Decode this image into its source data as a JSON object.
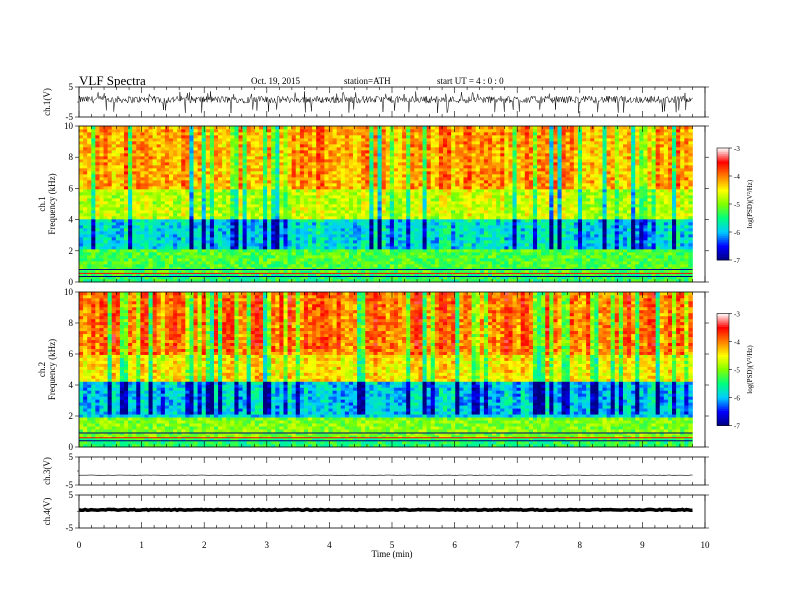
{
  "header": {
    "title": "VLF  Spectra",
    "date": "Oct. 19, 2015",
    "station": "station=ATH",
    "start": "start  UT  =   4  : 0  : 0"
  },
  "time_axis": {
    "label": "Time  (min)",
    "range": [
      0,
      10
    ],
    "ticks": [
      0,
      1,
      2,
      3,
      4,
      5,
      6,
      7,
      8,
      9,
      10
    ],
    "data_end": 9.8
  },
  "colorbar": {
    "label": "log(PSD)(V²/Hz)",
    "range": [
      -7,
      -3
    ],
    "ticks": [
      -3,
      -4,
      -5,
      -6,
      -7
    ],
    "stops": [
      "#000080",
      "#0000ff",
      "#00ccff",
      "#00ff80",
      "#80ff00",
      "#ffff00",
      "#ff8000",
      "#ff0000",
      "#ffffff"
    ]
  },
  "chart_data": [
    {
      "type": "line",
      "panel": "ch1",
      "ylabel": "ch.1(V)",
      "ylim": [
        -5,
        5
      ],
      "yticks": [
        5,
        -5
      ],
      "x_range_min": [
        0,
        9.8
      ],
      "baseline_v": 0.8,
      "noise_amplitude_v": 1.2,
      "spike_min_v": -2.5
    },
    {
      "type": "heatmap",
      "panel": "ch1",
      "ylabel_lines": [
        "ch.1",
        "Frequency  (kHz)"
      ],
      "ylim": [
        0,
        10
      ],
      "yticks": [
        0,
        2,
        4,
        6,
        8,
        10
      ],
      "bands_log_psd": [
        {
          "f": [
            0,
            0.5
          ],
          "level": -5.4
        },
        {
          "f": [
            0.5,
            2.2
          ],
          "level": -5.2
        },
        {
          "f": [
            2.2,
            4.0
          ],
          "level": -5.8
        },
        {
          "f": [
            4.0,
            6.0
          ],
          "level": -4.7
        },
        {
          "f": [
            6.0,
            10.0
          ],
          "level": -4.1
        }
      ],
      "tone_lines_khz": [
        0.35,
        0.55,
        0.8
      ]
    },
    {
      "type": "heatmap",
      "panel": "ch2",
      "ylabel_lines": [
        "ch.2",
        "Frequency  (kHz)"
      ],
      "ylim": [
        0,
        10
      ],
      "yticks": [
        0,
        2,
        4,
        6,
        8,
        10
      ],
      "bands_log_psd": [
        {
          "f": [
            0,
            0.5
          ],
          "level": -5.4
        },
        {
          "f": [
            0.5,
            2.0
          ],
          "level": -5.0
        },
        {
          "f": [
            2.0,
            4.2
          ],
          "level": -5.9
        },
        {
          "f": [
            4.2,
            6.0
          ],
          "level": -4.4
        },
        {
          "f": [
            6.0,
            10.0
          ],
          "level": -3.9
        }
      ],
      "tone_lines_khz": [
        0.4,
        0.6,
        0.9
      ]
    },
    {
      "type": "line",
      "panel": "ch3",
      "ylabel": "ch.3(V)",
      "ylim": [
        -5,
        5
      ],
      "yticks": [
        5,
        -5
      ],
      "x_range_min": [
        0,
        9.8
      ],
      "baseline_v": -1.5,
      "noise_amplitude_v": 0.05
    },
    {
      "type": "line",
      "panel": "ch4",
      "ylabel": "ch.4(V)",
      "ylim": [
        -5,
        5
      ],
      "yticks": [
        5,
        -5
      ],
      "x_range_min": [
        0,
        9.8
      ],
      "baseline_v": 0.5,
      "noise_amplitude_v": 0.15
    }
  ]
}
